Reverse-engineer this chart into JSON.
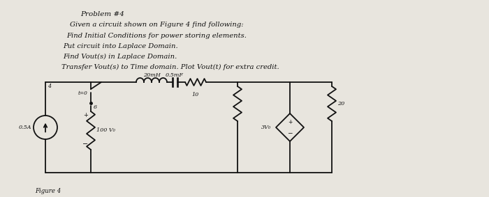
{
  "bg_color": "#e8e5de",
  "text_color": "#1a1a1a",
  "title_text": "Problem #4",
  "line1": "Given a circuit shown on Figure 4 find following:",
  "line2": "Find Initial Conditions for power storing elements.",
  "line3": "Put circuit into Laplace Domain.",
  "line4": "Find Vout(s) in Laplace Domain.",
  "line5": "Transfer Vout(s) to Time domain. Plot Vout(t) for extra credit.",
  "fig_label": "Figure 4",
  "font_size_title": 7.5,
  "font_size_body": 7.2,
  "font_size_small": 6.2,
  "font_size_label": 5.8
}
